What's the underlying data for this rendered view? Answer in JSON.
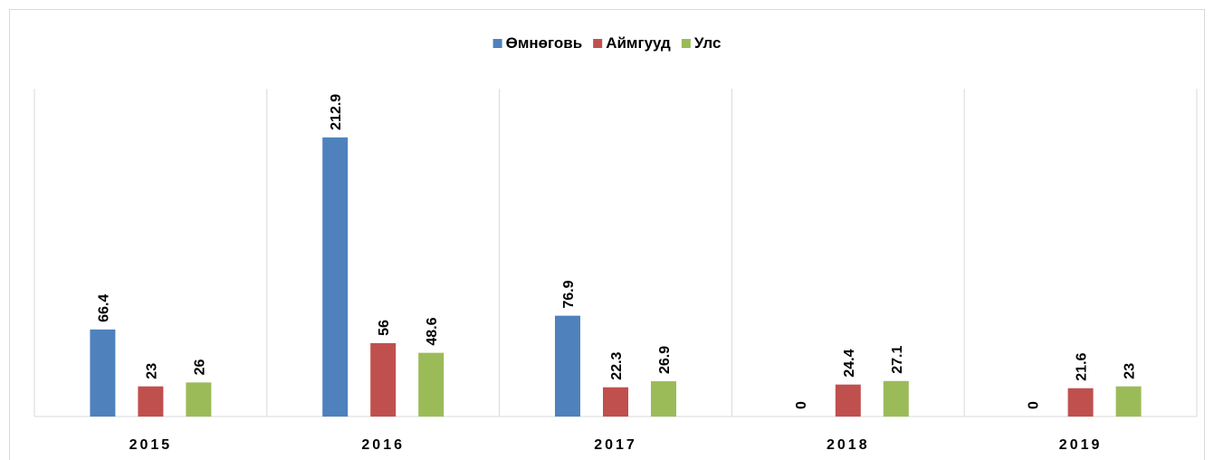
{
  "chart_data": {
    "type": "bar",
    "categories": [
      "2015",
      "2016",
      "2017",
      "2018",
      "2019"
    ],
    "series": [
      {
        "name": "Өмнөговь",
        "color": "#4f81bd",
        "values": [
          66.4,
          212.9,
          76.9,
          0,
          0
        ]
      },
      {
        "name": "Аймгууд",
        "color": "#c0504d",
        "values": [
          23,
          56,
          22.3,
          24.4,
          21.6
        ]
      },
      {
        "name": "Улс",
        "color": "#9bbb59",
        "values": [
          26,
          48.6,
          26.9,
          27.1,
          23
        ]
      }
    ],
    "ylim": [
      0,
      250
    ],
    "legend": "top",
    "grid": false
  }
}
